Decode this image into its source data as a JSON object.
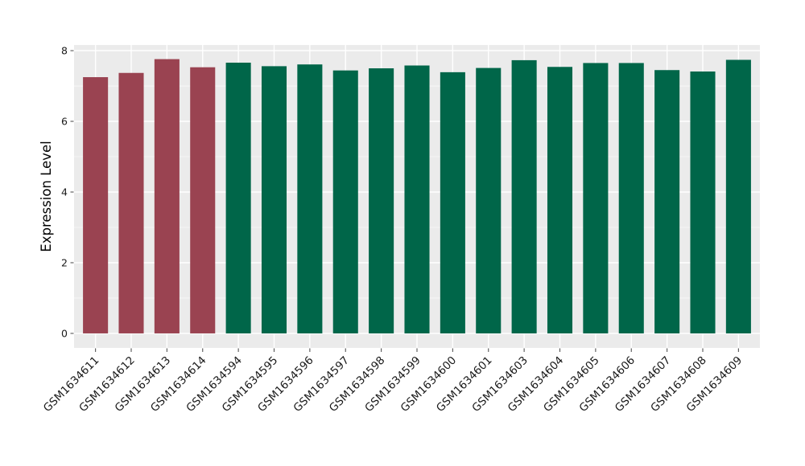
{
  "chart_data": {
    "type": "bar",
    "title": "",
    "xlabel": "",
    "ylabel": "Expression Level",
    "categories": [
      "GSM1634611",
      "GSM1634612",
      "GSM1634613",
      "GSM1634614",
      "GSM1634594",
      "GSM1634595",
      "GSM1634596",
      "GSM1634597",
      "GSM1634598",
      "GSM1634599",
      "GSM1634600",
      "GSM1634601",
      "GSM1634603",
      "GSM1634604",
      "GSM1634605",
      "GSM1634606",
      "GSM1634607",
      "GSM1634608",
      "GSM1634609"
    ],
    "values": [
      7.25,
      7.37,
      7.76,
      7.53,
      7.66,
      7.56,
      7.61,
      7.44,
      7.5,
      7.58,
      7.39,
      7.51,
      7.73,
      7.54,
      7.65,
      7.65,
      7.45,
      7.41,
      7.74
    ],
    "bar_groups": [
      "highlight",
      "highlight",
      "highlight",
      "highlight",
      "normal",
      "normal",
      "normal",
      "normal",
      "normal",
      "normal",
      "normal",
      "normal",
      "normal",
      "normal",
      "normal",
      "normal",
      "normal",
      "normal",
      "normal"
    ],
    "group_colors": {
      "highlight": "#9a4351",
      "normal": "#006649"
    },
    "yticks": [
      0,
      2,
      4,
      6,
      8
    ],
    "minor_yticks": [
      1,
      3,
      5,
      7
    ],
    "ylim": [
      -0.41,
      8.16
    ],
    "xlim": [
      -0.6,
      18.6
    ],
    "bar_width_frac": 0.7,
    "x_tick_rotation_deg": 45,
    "grid": true,
    "legend": "none",
    "style": {
      "figure_background": "#ffffff",
      "panel_background": "#ebebeb",
      "grid_major_color": "#ffffff",
      "grid_minor_color": "#f6f6f6",
      "tick_mark_color": "#555555",
      "tick_label_color": "#1a1a1a",
      "axis_label_color": "#000000"
    }
  }
}
